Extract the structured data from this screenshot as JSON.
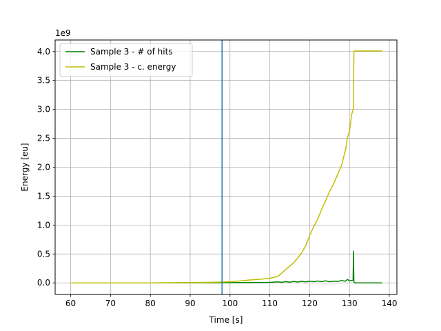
{
  "chart_data": {
    "type": "line",
    "xlabel": "Time [s]",
    "ylabel": "Energy [eu]",
    "y_offset_label": "1e9",
    "xlim": [
      56.1,
      141.9
    ],
    "ylim": [
      -0.2,
      4.2
    ],
    "x_ticks": [
      60,
      70,
      80,
      90,
      100,
      110,
      120,
      130,
      140
    ],
    "y_ticks": [
      0.0,
      0.5,
      1.0,
      1.5,
      2.0,
      2.5,
      3.0,
      3.5,
      4.0
    ],
    "x_tick_labels": [
      "60",
      "70",
      "80",
      "90",
      "100",
      "110",
      "120",
      "130",
      "140"
    ],
    "y_tick_labels": [
      "0.0",
      "0.5",
      "1.0",
      "1.5",
      "2.0",
      "2.5",
      "3.0",
      "3.5",
      "4.0"
    ],
    "grid": true,
    "legend_position": "top-left",
    "vline": {
      "x": 98,
      "color": "#1f77b4"
    },
    "series": [
      {
        "name": "Sample 3 - # of hits",
        "color": "#008000",
        "x": [
          60,
          80,
          95,
          100,
          105,
          110,
          112,
          113,
          114,
          115,
          116,
          117,
          118,
          119,
          120,
          121,
          122,
          123,
          124,
          125,
          126,
          127,
          128,
          129,
          129.5,
          130,
          130.5,
          130.9,
          131.0,
          131.1,
          131.3,
          132,
          138.2
        ],
        "y": [
          0.0,
          0.0,
          0.002,
          0.004,
          0.005,
          0.008,
          0.018,
          0.01,
          0.022,
          0.012,
          0.025,
          0.015,
          0.028,
          0.018,
          0.03,
          0.02,
          0.032,
          0.022,
          0.035,
          0.02,
          0.03,
          0.025,
          0.04,
          0.03,
          0.06,
          0.035,
          0.04,
          0.05,
          0.55,
          0.02,
          0.0,
          0.0,
          0.0
        ]
      },
      {
        "name": "Sample 3 - c. energy",
        "color": "#bfbf00",
        "x": [
          60,
          80,
          90,
          95,
          98,
          100,
          102,
          105,
          108,
          110,
          112,
          113,
          114,
          115,
          116,
          117,
          118,
          119,
          120,
          121,
          122,
          123,
          124,
          125,
          126,
          127,
          128,
          129,
          129.5,
          130,
          130.5,
          130.9,
          131.0,
          131.1,
          131.3,
          134,
          138.2
        ],
        "y": [
          0.0,
          0.0,
          0.005,
          0.01,
          0.015,
          0.02,
          0.03,
          0.05,
          0.065,
          0.08,
          0.11,
          0.17,
          0.23,
          0.29,
          0.35,
          0.43,
          0.52,
          0.64,
          0.82,
          0.97,
          1.1,
          1.27,
          1.42,
          1.58,
          1.71,
          1.87,
          2.03,
          2.3,
          2.52,
          2.62,
          2.9,
          3.0,
          3.02,
          4.0,
          4.01,
          4.01,
          4.01
        ]
      }
    ]
  }
}
